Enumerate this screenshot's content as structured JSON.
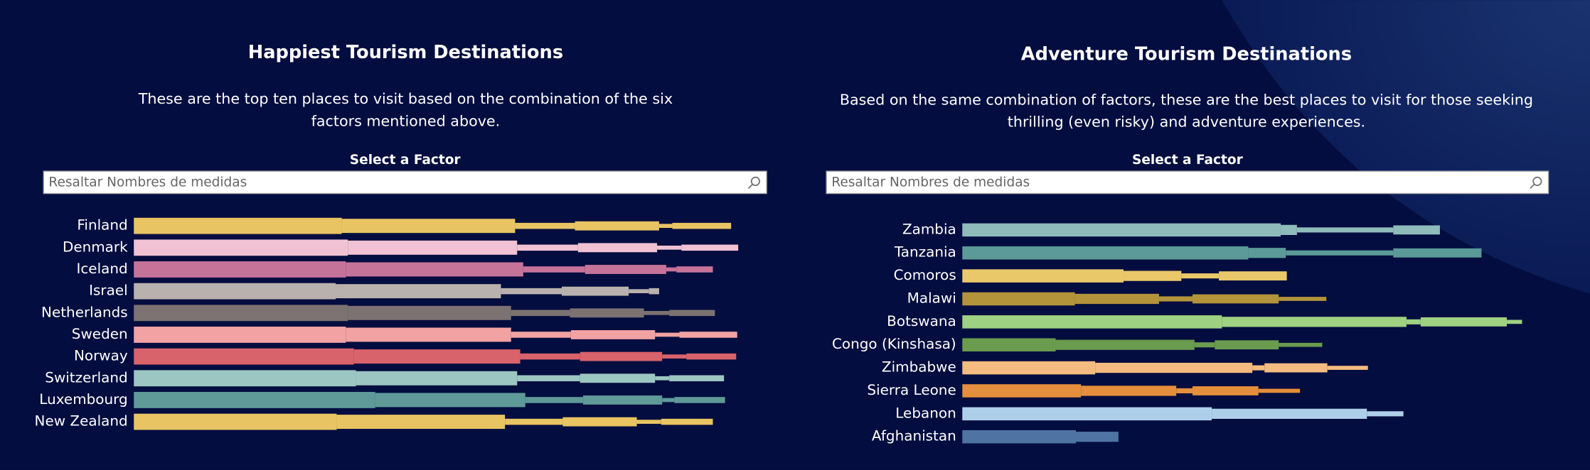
{
  "chart_data": [
    {
      "type": "bar",
      "title": "Happiest Tourism Destinations",
      "subtitle": [
        "These are the top ten places to visit based on the combination of the six",
        "factors mentioned above."
      ],
      "filter_label": "Select a Factor",
      "search_placeholder": "Resaltar Nombres de medidas",
      "xlim": [
        0,
        620
      ],
      "categories": [
        "Finland",
        "Denmark",
        "Iceland",
        "Israel",
        "Netherlands",
        "Sweden",
        "Norway",
        "Switzerland",
        "Luxembourg",
        "New Zealand"
      ],
      "colors": [
        "#e8c462",
        "#f0c2d3",
        "#c6739a",
        "#b9b1ad",
        "#7b7271",
        "#f2a2a2",
        "#d9636a",
        "#9cc6c2",
        "#5f9a98",
        "#e8c462"
      ],
      "values": [
        [
          205,
          171,
          59,
          83,
          13,
          58
        ],
        [
          211,
          167,
          60,
          78,
          24,
          56
        ],
        [
          209,
          175,
          61,
          80,
          10,
          36
        ],
        [
          199,
          163,
          60,
          66,
          20,
          10
        ],
        [
          211,
          161,
          58,
          73,
          25,
          45
        ],
        [
          209,
          163,
          59,
          83,
          24,
          57
        ],
        [
          217,
          164,
          59,
          81,
          24,
          49
        ],
        [
          219,
          159,
          62,
          74,
          14,
          54
        ],
        [
          238,
          148,
          57,
          78,
          12,
          50
        ],
        [
          200,
          166,
          57,
          73,
          24,
          51
        ]
      ]
    },
    {
      "type": "bar",
      "title": "Adventure Tourism Destinations",
      "subtitle": [
        "Based on the same combination of factors, these are the best places to visit for those seeking",
        "thrilling (even risky) and adventure experiences."
      ],
      "filter_label": "Select a Factor",
      "search_placeholder": "Resaltar Nombres de medidas",
      "xlim": [
        0,
        620
      ],
      "categories": [
        "Zambia",
        "Tanzania",
        "Comoros",
        "Malawi",
        "Botswana",
        "Congo (Kinshasa)",
        "Zimbabwe",
        "Sierra Leone",
        "Lebanon",
        "Afghanistan"
      ],
      "colors": [
        "#8fbcbb",
        "#5b9a98",
        "#e9c86a",
        "#b4943a",
        "#9ed182",
        "#6a9b4e",
        "#f5bb80",
        "#e38f3d",
        "#aecfea",
        "#4f74a3"
      ],
      "values": [
        [
          314,
          16,
          95,
          46
        ],
        [
          282,
          37,
          106,
          87
        ],
        [
          159,
          57,
          37,
          67
        ],
        [
          111,
          83,
          33,
          85,
          47
        ],
        [
          256,
          182,
          14,
          85,
          15
        ],
        [
          92,
          137,
          20,
          63,
          43
        ],
        [
          131,
          155,
          12,
          62,
          40
        ],
        [
          117,
          94,
          16,
          65,
          41
        ],
        [
          246,
          153,
          36
        ],
        [
          112,
          42
        ]
      ]
    }
  ]
}
